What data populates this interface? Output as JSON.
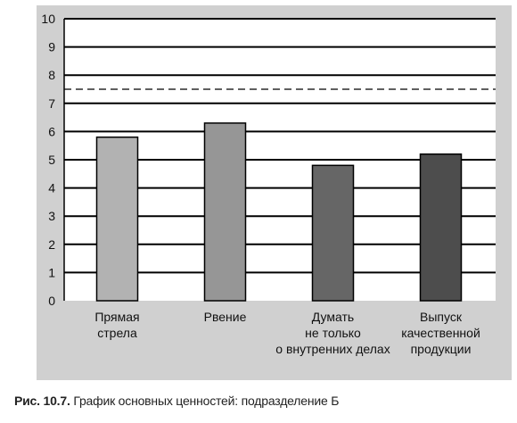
{
  "chart_data": {
    "type": "bar",
    "categories": [
      [
        "Прямая",
        "стрела"
      ],
      [
        "Рвение"
      ],
      [
        "Думать",
        "не только",
        "о внутренних делах"
      ],
      [
        "Выпуск",
        "качественной",
        "продукции"
      ]
    ],
    "values": [
      5.8,
      6.3,
      4.8,
      5.2
    ],
    "bar_colors": [
      "#b2b2b2",
      "#969696",
      "#666666",
      "#4d4d4d"
    ],
    "ylim": [
      0,
      10
    ],
    "yticks": [
      "0",
      "1",
      "2",
      "3",
      "4",
      "5",
      "6",
      "7",
      "8",
      "9",
      "10"
    ],
    "reference_line": 7.5,
    "grid": true
  },
  "caption": {
    "label": "Рис. 10.7.",
    "text": "График основных ценностей: подразделение Б"
  }
}
